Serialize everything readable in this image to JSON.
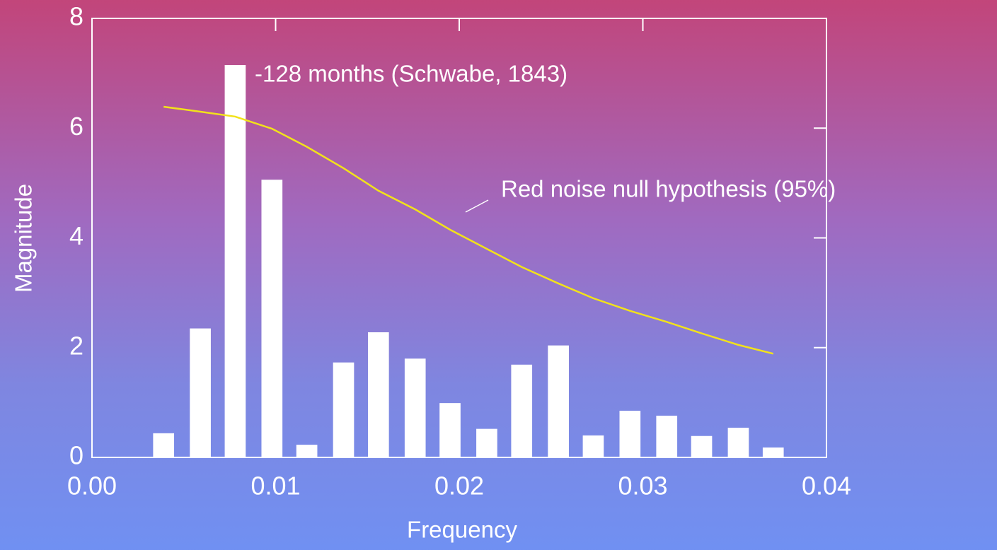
{
  "chart_data": {
    "type": "bar",
    "x_label": "Frequency",
    "y_label": "Magnitude",
    "x": [
      0.0039,
      0.0059,
      0.0078,
      0.0098,
      0.0117,
      0.0137,
      0.0156,
      0.0176,
      0.0195,
      0.0215,
      0.0234,
      0.0254,
      0.0273,
      0.0293,
      0.0313,
      0.0332,
      0.0352,
      0.0371
    ],
    "bars": {
      "color": "#ffffff",
      "values": [
        0.44,
        2.35,
        7.15,
        5.06,
        0.23,
        1.73,
        2.28,
        1.8,
        0.99,
        0.52,
        1.69,
        2.04,
        0.4,
        0.85,
        0.76,
        0.39,
        0.54,
        0.18
      ]
    },
    "line": {
      "color": "#f2e21a",
      "values": [
        6.39,
        6.3,
        6.21,
        5.99,
        5.66,
        5.27,
        4.86,
        4.52,
        4.15,
        3.8,
        3.47,
        3.17,
        2.9,
        2.67,
        2.47,
        2.26,
        2.05,
        1.89
      ]
    },
    "annotations": [
      "-128 months (Schwabe, 1843)",
      "Red noise null hypothesis (95%)"
    ],
    "xlim": [
      0,
      0.04
    ],
    "xticks": [
      {
        "value": 0,
        "label": "0.00"
      },
      0.01,
      0.02,
      0.03,
      0.04
    ],
    "ylim": [
      0,
      8
    ],
    "yticks": [
      0,
      2,
      4,
      6,
      8
    ]
  }
}
